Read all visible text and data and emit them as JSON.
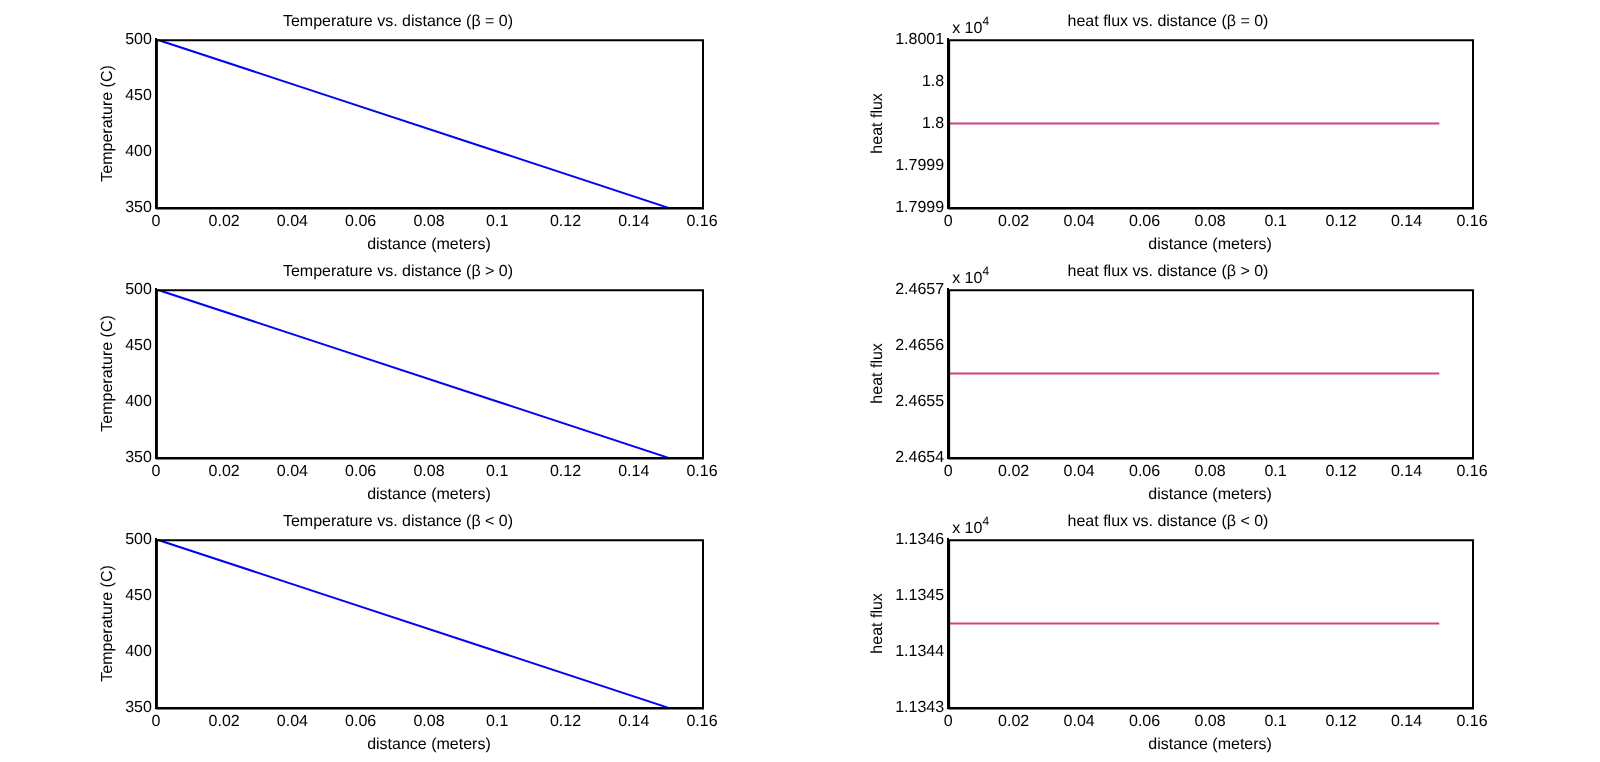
{
  "chart_data": [
    {
      "type": "line",
      "title": "Temperature vs. distance (β = 0)",
      "xlabel": "distance (meters)",
      "ylabel": "Temperature (C)",
      "x": [
        0,
        0.05,
        0.1,
        0.15
      ],
      "series": [
        {
          "color": "#0000ff",
          "values": [
            500,
            450,
            400,
            350
          ]
        }
      ],
      "xlim": [
        0,
        0.16
      ],
      "xticks": [
        0,
        0.02,
        0.04,
        0.06,
        0.08,
        0.1,
        0.12,
        0.14,
        0.16
      ],
      "ylim": [
        350,
        500
      ],
      "yticks": [
        350,
        400,
        450,
        500
      ],
      "grid": false
    },
    {
      "type": "line",
      "title": "heat flux vs. distance (β = 0)",
      "xlabel": "distance (meters)",
      "ylabel": "heat flux",
      "annotations": [
        "x 10$^{4}$"
      ],
      "x": [
        0,
        0.15
      ],
      "series": [
        {
          "color": "#d0408a",
          "values": [
            1.8,
            1.8
          ]
        }
      ],
      "xlim": [
        0,
        0.16
      ],
      "xticks": [
        0,
        0.02,
        0.04,
        0.06,
        0.08,
        0.1,
        0.12,
        0.14,
        0.16
      ],
      "ylim": [
        1.7999,
        1.8001
      ],
      "yticks": [
        1.7999,
        {
          "value": 1.79995,
          "label": "1.7999"
        },
        1.8,
        {
          "value": 1.80005,
          "label": "1.8"
        },
        1.8001
      ],
      "grid": false
    },
    {
      "type": "line",
      "title": "Temperature vs. distance (β > 0)",
      "xlabel": "distance (meters)",
      "ylabel": "Temperature (C)",
      "x": [
        0,
        0.05,
        0.1,
        0.15
      ],
      "series": [
        {
          "color": "#0000ff",
          "values": [
            500,
            450,
            400,
            350
          ]
        }
      ],
      "xlim": [
        0,
        0.16
      ],
      "xticks": [
        0,
        0.02,
        0.04,
        0.06,
        0.08,
        0.1,
        0.12,
        0.14,
        0.16
      ],
      "ylim": [
        350,
        500
      ],
      "yticks": [
        350,
        400,
        450,
        500
      ],
      "grid": false
    },
    {
      "type": "line",
      "title": "heat flux vs. distance (β > 0)",
      "xlabel": "distance (meters)",
      "ylabel": "heat flux",
      "annotations": [
        "x 10$^{4}$"
      ],
      "x": [
        0,
        0.15
      ],
      "series": [
        {
          "color": "#d0408a",
          "values": [
            2.46555,
            2.46555
          ]
        }
      ],
      "xlim": [
        0,
        0.16
      ],
      "xticks": [
        0,
        0.02,
        0.04,
        0.06,
        0.08,
        0.1,
        0.12,
        0.14,
        0.16
      ],
      "ylim": [
        2.4654,
        2.4657
      ],
      "yticks": [
        2.4654,
        2.4655,
        2.4656,
        2.4657
      ],
      "grid": false
    },
    {
      "type": "line",
      "title": "Temperature vs. distance (β < 0)",
      "xlabel": "distance (meters)",
      "ylabel": "Temperature (C)",
      "x": [
        0,
        0.05,
        0.1,
        0.15
      ],
      "series": [
        {
          "color": "#0000ff",
          "values": [
            500,
            450,
            400,
            350
          ]
        }
      ],
      "xlim": [
        0,
        0.16
      ],
      "xticks": [
        0,
        0.02,
        0.04,
        0.06,
        0.08,
        0.1,
        0.12,
        0.14,
        0.16
      ],
      "ylim": [
        350,
        500
      ],
      "yticks": [
        350,
        400,
        450,
        500
      ],
      "grid": false
    },
    {
      "type": "line",
      "title": "heat flux vs. distance (β < 0)",
      "xlabel": "distance (meters)",
      "ylabel": "heat flux",
      "annotations": [
        "x 10$^{4}$"
      ],
      "x": [
        0,
        0.15
      ],
      "series": [
        {
          "color": "#d0408a",
          "values": [
            1.13445,
            1.13445
          ]
        }
      ],
      "xlim": [
        0,
        0.16
      ],
      "xticks": [
        0,
        0.02,
        0.04,
        0.06,
        0.08,
        0.1,
        0.12,
        0.14,
        0.16
      ],
      "ylim": [
        1.1343,
        1.1346
      ],
      "yticks": [
        1.1343,
        1.1344,
        1.1345,
        1.1346
      ],
      "grid": false
    }
  ]
}
